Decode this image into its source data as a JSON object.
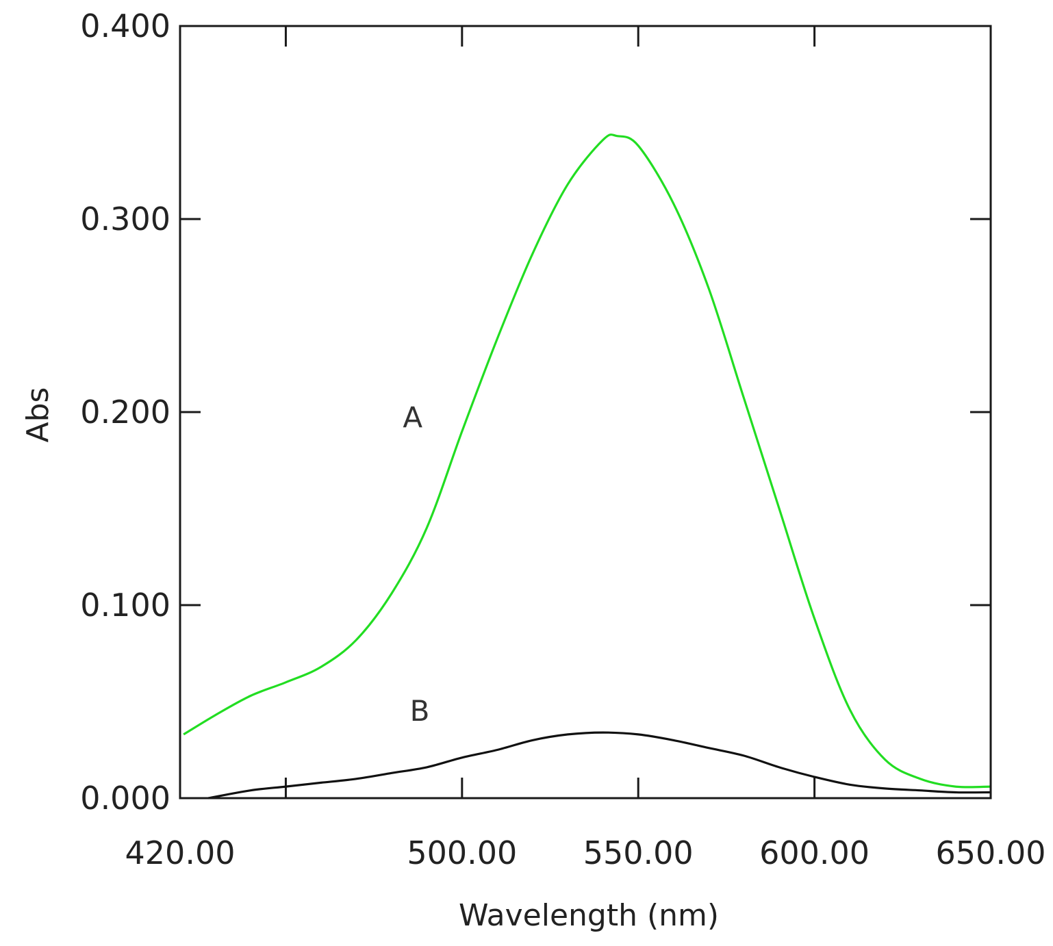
{
  "chart_data": {
    "type": "line",
    "xlabel": "Wavelength (nm)",
    "ylabel": "Abs",
    "xlim": [
      420,
      650
    ],
    "ylim": [
      0,
      0.4
    ],
    "x_ticks": [
      {
        "value": 420,
        "label": "420.00"
      },
      {
        "value": 500,
        "label": "500.00"
      },
      {
        "value": 550,
        "label": "550.00"
      },
      {
        "value": 600,
        "label": "600.00"
      },
      {
        "value": 650,
        "label": "650.00"
      }
    ],
    "x_minor_ticks": [
      450,
      500,
      550,
      600
    ],
    "y_ticks": [
      {
        "value": 0.0,
        "label": "0.000"
      },
      {
        "value": 0.1,
        "label": "0.100"
      },
      {
        "value": 0.2,
        "label": "0.200"
      },
      {
        "value": 0.3,
        "label": "0.300"
      },
      {
        "value": 0.4,
        "label": "0.400"
      }
    ],
    "grid": false,
    "series": [
      {
        "name": "A",
        "color": "#22dd22",
        "label_at": {
          "x": 486,
          "y": 0.192
        },
        "x": [
          421,
          430,
          440,
          450,
          460,
          470,
          480,
          490,
          500,
          510,
          520,
          530,
          540,
          544,
          550,
          560,
          570,
          580,
          590,
          600,
          610,
          620,
          630,
          640,
          650
        ],
        "y": [
          0.033,
          0.043,
          0.053,
          0.06,
          0.068,
          0.082,
          0.106,
          0.14,
          0.19,
          0.238,
          0.282,
          0.318,
          0.341,
          0.343,
          0.338,
          0.308,
          0.264,
          0.207,
          0.15,
          0.093,
          0.046,
          0.02,
          0.01,
          0.006,
          0.006
        ]
      },
      {
        "name": "B",
        "color": "#111111",
        "label_at": {
          "x": 488,
          "y": 0.04
        },
        "x": [
          428,
          440,
          450,
          460,
          470,
          480,
          490,
          500,
          510,
          520,
          530,
          540,
          550,
          560,
          570,
          580,
          590,
          600,
          610,
          620,
          630,
          640,
          650
        ],
        "y": [
          0.0,
          0.004,
          0.006,
          0.008,
          0.01,
          0.013,
          0.016,
          0.021,
          0.025,
          0.03,
          0.033,
          0.034,
          0.033,
          0.03,
          0.026,
          0.022,
          0.016,
          0.011,
          0.007,
          0.005,
          0.004,
          0.003,
          0.003
        ]
      }
    ]
  }
}
